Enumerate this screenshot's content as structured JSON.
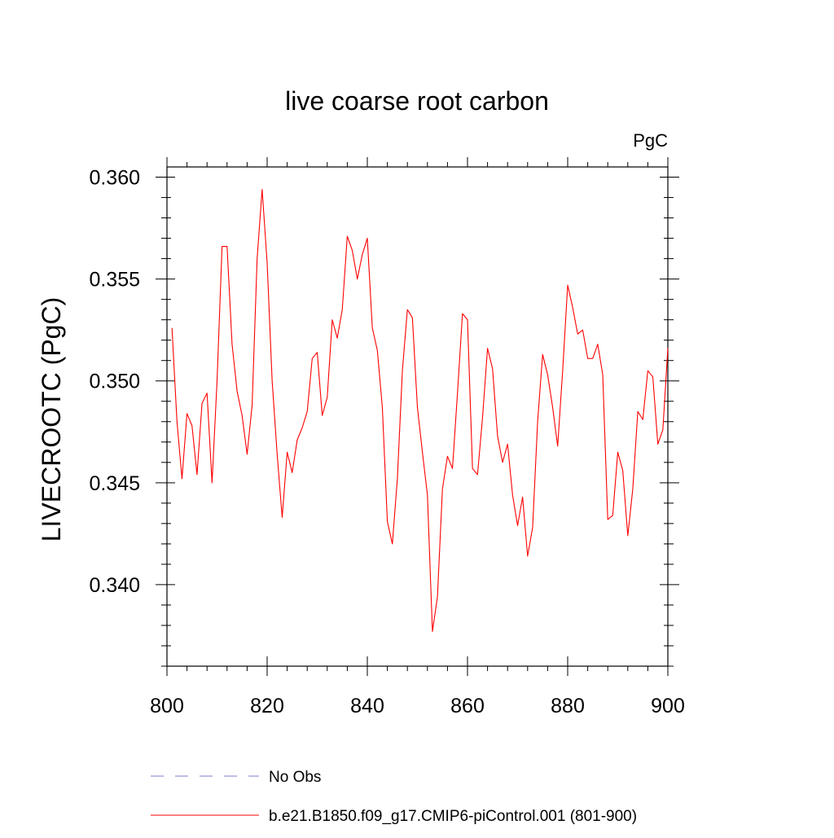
{
  "chart_data": {
    "type": "line",
    "title": "live coarse root carbon",
    "units_label": "PgC",
    "ylabel": "LIVECROOTC  (PgC)",
    "xlabel": "",
    "xlim": [
      800,
      900
    ],
    "ylim": [
      0.336,
      0.3605
    ],
    "x_ticks": [
      800,
      820,
      840,
      860,
      880,
      900
    ],
    "x_tick_labels": [
      "800",
      "820",
      "840",
      "860",
      "880",
      "900"
    ],
    "y_ticks": [
      0.34,
      0.345,
      0.35,
      0.355,
      0.36
    ],
    "y_tick_labels": [
      "0.340",
      "0.345",
      "0.350",
      "0.355",
      "0.360"
    ],
    "grid": false,
    "legend": [
      {
        "label": "No Obs",
        "color": "#7b7bd6",
        "style": "dashed"
      },
      {
        "label": "b.e21.B1850.f09_g17.CMIP6-piControl.001 (801-900)",
        "color": "#ff0000",
        "style": "solid"
      }
    ],
    "series": [
      {
        "name": "b.e21.B1850.f09_g17.CMIP6-piControl.001 (801-900)",
        "color": "#ff0000",
        "x": [
          801,
          802,
          803,
          804,
          805,
          806,
          807,
          808,
          809,
          810,
          811,
          812,
          813,
          814,
          815,
          816,
          817,
          818,
          819,
          820,
          821,
          822,
          823,
          824,
          825,
          826,
          827,
          828,
          829,
          830,
          831,
          832,
          833,
          834,
          835,
          836,
          837,
          838,
          839,
          840,
          841,
          842,
          843,
          844,
          845,
          846,
          847,
          848,
          849,
          850,
          851,
          852,
          853,
          854,
          855,
          856,
          857,
          858,
          859,
          860,
          861,
          862,
          863,
          864,
          865,
          866,
          867,
          868,
          869,
          870,
          871,
          872,
          873,
          874,
          875,
          876,
          877,
          878,
          879,
          880,
          881,
          882,
          883,
          884,
          885,
          886,
          887,
          888,
          889,
          890,
          891,
          892,
          893,
          894,
          895,
          896,
          897,
          898,
          899,
          900
        ],
        "values": [
          0.3526,
          0.348,
          0.3452,
          0.3484,
          0.3478,
          0.3454,
          0.3489,
          0.3494,
          0.345,
          0.35,
          0.3566,
          0.3566,
          0.3518,
          0.3495,
          0.3483,
          0.3464,
          0.3488,
          0.356,
          0.3594,
          0.3558,
          0.35,
          0.3464,
          0.3433,
          0.3465,
          0.3455,
          0.3471,
          0.3477,
          0.3485,
          0.3511,
          0.3514,
          0.3483,
          0.3492,
          0.353,
          0.3521,
          0.3535,
          0.3571,
          0.3564,
          0.355,
          0.3562,
          0.357,
          0.3526,
          0.3515,
          0.3487,
          0.3431,
          0.342,
          0.3452,
          0.3505,
          0.3535,
          0.3531,
          0.3487,
          0.3465,
          0.3444,
          0.3377,
          0.3394,
          0.3447,
          0.3463,
          0.3457,
          0.3494,
          0.3533,
          0.353,
          0.3457,
          0.3454,
          0.3482,
          0.3516,
          0.3506,
          0.3473,
          0.346,
          0.3469,
          0.3444,
          0.3429,
          0.3443,
          0.3414,
          0.3428,
          0.348,
          0.3513,
          0.3503,
          0.3487,
          0.3468,
          0.3505,
          0.3547,
          0.3536,
          0.3523,
          0.3525,
          0.3511,
          0.3511,
          0.3518,
          0.3503,
          0.3432,
          0.3434,
          0.3465,
          0.3456,
          0.3424,
          0.3447,
          0.3485,
          0.3481,
          0.3505,
          0.3502,
          0.3469,
          0.3476,
          0.3516
        ]
      }
    ]
  }
}
